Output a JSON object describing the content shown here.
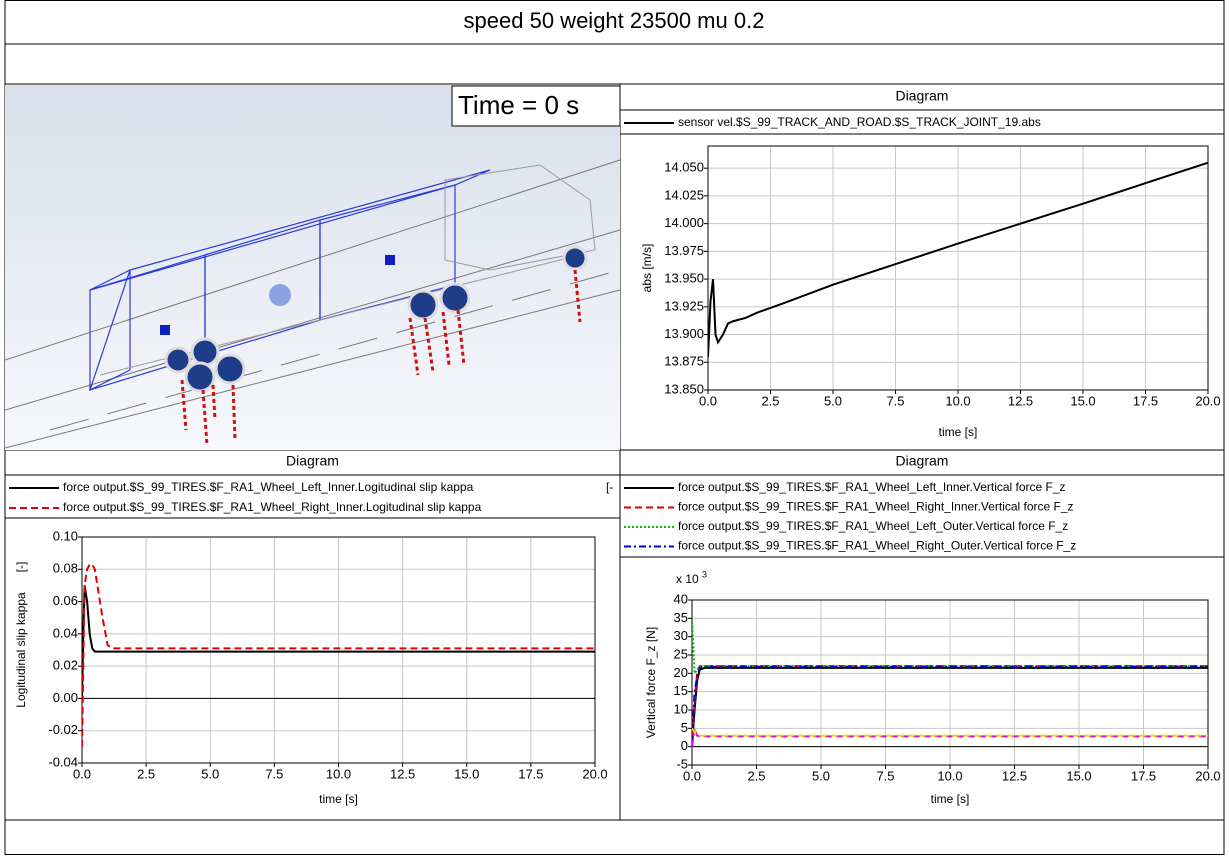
{
  "header": {
    "title": "speed 50 weight 23500 mu 0.2"
  },
  "viewport": {
    "label": "Time = 0 s"
  },
  "chart_data": [
    {
      "type": "line",
      "title": "Diagram",
      "x_label": "time [s]",
      "y_label": "abs [m/s]",
      "x": [
        0,
        0.1,
        0.2,
        0.3,
        0.4,
        0.6,
        0.8,
        1,
        1.5,
        2,
        3,
        5,
        10,
        15,
        20
      ],
      "series": [
        {
          "name": "sensor vel.$S_99_TRACK_AND_ROAD.$S_TRACK_JOINT_19.abs",
          "color": "#000000",
          "dash": "solid",
          "values": [
            13.88,
            13.93,
            13.95,
            13.9,
            13.893,
            13.9,
            13.91,
            13.912,
            13.915,
            13.92,
            13.928,
            13.945,
            13.982,
            14.018,
            14.055
          ]
        }
      ],
      "xlim": [
        0,
        20
      ],
      "ylim": [
        13.85,
        14.07
      ],
      "grid": true,
      "xticks": [
        {
          "value": 0,
          "label": "0.0"
        },
        {
          "value": 2.5,
          "label": "2.5"
        },
        {
          "value": 5,
          "label": "5.0"
        },
        {
          "value": 7.5,
          "label": "7.5"
        },
        {
          "value": 10,
          "label": "10.0"
        },
        {
          "value": 12.5,
          "label": "12.5"
        },
        {
          "value": 15,
          "label": "15.0"
        },
        {
          "value": 17.5,
          "label": "17.5"
        },
        {
          "value": 20,
          "label": "20.0"
        }
      ],
      "yticks": [
        {
          "value": 13.85,
          "label": "13.850"
        },
        {
          "value": 13.875,
          "label": "13.875"
        },
        {
          "value": 13.9,
          "label": "13.900"
        },
        {
          "value": 13.925,
          "label": "13.925"
        },
        {
          "value": 13.95,
          "label": "13.950"
        },
        {
          "value": 13.975,
          "label": "13.975"
        },
        {
          "value": 14.0,
          "label": "14.000"
        },
        {
          "value": 14.025,
          "label": "14.025"
        },
        {
          "value": 14.05,
          "label": "14.050"
        }
      ]
    },
    {
      "type": "line",
      "title": "Diagram",
      "x_label": "time [s]",
      "y_label": "Logitudinal slip kappa",
      "y_unit": "[-]",
      "legend_overflow": "[-",
      "x": [
        0,
        0.05,
        0.1,
        0.2,
        0.3,
        0.4,
        0.5,
        0.6,
        0.8,
        1,
        1.2,
        2,
        5,
        10,
        15,
        20
      ],
      "series": [
        {
          "name": "force output.$S_99_TIRES.$F_RA1_Wheel_Left_Inner.Logitudinal slip kappa",
          "color": "#000000",
          "dash": "solid",
          "values": [
            0,
            0.04,
            0.07,
            0.06,
            0.04,
            0.031,
            0.029,
            0.029,
            0.029,
            0.029,
            0.029,
            0.029,
            0.029,
            0.029,
            0.029,
            0.029
          ]
        },
        {
          "name": "force output.$S_99_TIRES.$F_RA1_Wheel_Right_Inner.Logitudinal slip kappa",
          "color": "#e00000",
          "dash": "dashed",
          "values": [
            -0.03,
            0.02,
            0.07,
            0.08,
            0.083,
            0.083,
            0.08,
            0.07,
            0.05,
            0.033,
            0.031,
            0.031,
            0.031,
            0.031,
            0.031,
            0.031
          ]
        }
      ],
      "xlim": [
        0,
        20
      ],
      "ylim": [
        -0.04,
        0.1
      ],
      "grid": true,
      "zero_line": true,
      "xticks": [
        {
          "value": 0,
          "label": "0.0"
        },
        {
          "value": 2.5,
          "label": "2.5"
        },
        {
          "value": 5,
          "label": "5.0"
        },
        {
          "value": 7.5,
          "label": "7.5"
        },
        {
          "value": 10,
          "label": "10.0"
        },
        {
          "value": 12.5,
          "label": "12.5"
        },
        {
          "value": 15,
          "label": "15.0"
        },
        {
          "value": 17.5,
          "label": "17.5"
        },
        {
          "value": 20,
          "label": "20.0"
        }
      ],
      "yticks": [
        {
          "value": -0.04,
          "label": "-0.04"
        },
        {
          "value": -0.02,
          "label": "-0.02"
        },
        {
          "value": 0,
          "label": "0.00"
        },
        {
          "value": 0.02,
          "label": "0.02"
        },
        {
          "value": 0.04,
          "label": "0.04"
        },
        {
          "value": 0.06,
          "label": "0.06"
        },
        {
          "value": 0.08,
          "label": "0.08"
        },
        {
          "value": 0.1,
          "label": "0.10"
        }
      ]
    },
    {
      "type": "line",
      "title": "Diagram",
      "x_label": "time [s]",
      "y_label": "Vertical force F_z [N]",
      "multiplier": "x 10",
      "multiplier_exp": "3",
      "x": [
        0,
        0.1,
        0.2,
        0.3,
        0.5,
        1,
        2,
        5,
        10,
        15,
        20
      ],
      "series": [
        {
          "name": "force output.$S_99_TIRES.$F_RA1_Wheel_Left_Inner.Vertical force F_z",
          "color": "#000000",
          "dash": "solid",
          "values": [
            0,
            10,
            18,
            21,
            21.5,
            21.5,
            21.5,
            21.5,
            21.5,
            21.5,
            21.5
          ]
        },
        {
          "name": "force output.$S_99_TIRES.$F_RA1_Wheel_Right_Inner.Vertical force F_z",
          "color": "#e00000",
          "dash": "dashed",
          "values": [
            0,
            12,
            20,
            22,
            22,
            22,
            22,
            22,
            22,
            22,
            22
          ]
        },
        {
          "name": "force output.$S_99_TIRES.$F_RA1_Wheel_Left_Outer.Vertical force F_z",
          "color": "#00c000",
          "dash": "dotted",
          "values": [
            35,
            20,
            21,
            22,
            22,
            22,
            22,
            22,
            22,
            22,
            22
          ]
        },
        {
          "name": "force output.$S_99_TIRES.$F_RA1_Wheel_Right_Outer.Vertical force F_z",
          "color": "#0000d0",
          "dash": "dashdot",
          "values": [
            0,
            15,
            19,
            21.5,
            21.8,
            21.8,
            21.8,
            21.8,
            21.8,
            21.8,
            21.8
          ]
        },
        {
          "color": "#e000e0",
          "dash": "dashed",
          "values": [
            0,
            5,
            3,
            2.8,
            2.8,
            2.8,
            2.8,
            2.8,
            2.8,
            2.8,
            2.8
          ]
        },
        {
          "color": "#e0e000",
          "dash": "dashed",
          "values": [
            5,
            4,
            3,
            3,
            3,
            3,
            3,
            3,
            3,
            3,
            3
          ]
        }
      ],
      "xlim": [
        0,
        20
      ],
      "ylim": [
        -5,
        40
      ],
      "grid": true,
      "zero_line": true,
      "xticks": [
        {
          "value": 0,
          "label": "0.0"
        },
        {
          "value": 2.5,
          "label": "2.5"
        },
        {
          "value": 5,
          "label": "5.0"
        },
        {
          "value": 7.5,
          "label": "7.5"
        },
        {
          "value": 10,
          "label": "10.0"
        },
        {
          "value": 12.5,
          "label": "12.5"
        },
        {
          "value": 15,
          "label": "15.0"
        },
        {
          "value": 17.5,
          "label": "17.5"
        },
        {
          "value": 20,
          "label": "20.0"
        }
      ],
      "yticks": [
        -5,
        0,
        5,
        10,
        15,
        20,
        25,
        30,
        35,
        40
      ]
    }
  ]
}
